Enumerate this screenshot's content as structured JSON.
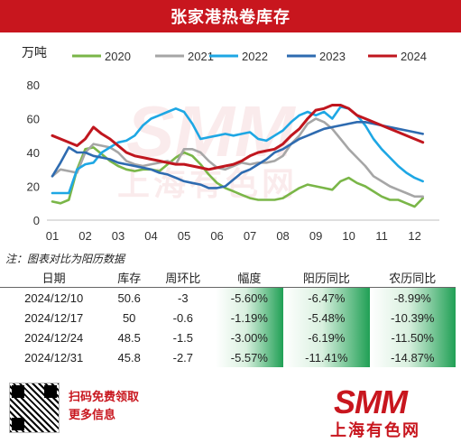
{
  "title": "张家港热卷库存",
  "unit": "万吨",
  "note": "注：图表对比为阳历数据",
  "colors": {
    "brand": "#c8161e",
    "s2020": "#7ab648",
    "s2021": "#a6a6a6",
    "s2022": "#1ea7e4",
    "s2023": "#2e6bb0",
    "s2024": "#c0161e",
    "green": "#20a055"
  },
  "chart_data": {
    "type": "line",
    "title": "张家港热卷库存",
    "ylabel": "万吨",
    "xlabel": "",
    "ylim": [
      0,
      80
    ],
    "yticks": [
      0,
      20,
      40,
      60,
      80
    ],
    "xlim": [
      1,
      12.75
    ],
    "xticks": [
      "01",
      "02",
      "03",
      "04",
      "05",
      "06",
      "07",
      "08",
      "09",
      "10",
      "11",
      "12"
    ],
    "legend_position": "top",
    "grid": false,
    "series": [
      {
        "name": "2020",
        "color": "#7ab648",
        "x": [
          1,
          1.25,
          1.5,
          1.75,
          2,
          2.25,
          2.5,
          2.75,
          3,
          3.25,
          3.5,
          3.75,
          4,
          4.25,
          4.5,
          4.75,
          5,
          5.25,
          5.5,
          5.75,
          6,
          6.25,
          6.5,
          6.75,
          7,
          7.25,
          7.5,
          7.75,
          8,
          8.25,
          8.5,
          8.75,
          9,
          9.25,
          9.5,
          9.75,
          10,
          10.25,
          10.5,
          10.75,
          11,
          11.25,
          11.5,
          11.75,
          12,
          12.25
        ],
        "values": [
          11,
          10,
          12,
          30,
          42,
          43,
          39,
          35,
          32,
          30,
          29,
          30,
          30,
          29,
          33,
          37,
          40,
          38,
          33,
          27,
          22,
          19,
          17,
          15,
          13,
          12,
          12,
          12,
          13,
          16,
          19,
          21,
          20,
          19,
          18,
          23,
          25,
          22,
          20,
          17,
          14,
          12,
          12,
          10,
          8,
          13
        ]
      },
      {
        "name": "2021",
        "color": "#a6a6a6",
        "x": [
          1,
          1.25,
          1.5,
          1.75,
          2,
          2.25,
          2.5,
          2.75,
          3,
          3.25,
          3.5,
          3.75,
          4,
          4.25,
          4.5,
          4.75,
          5,
          5.25,
          5.5,
          5.75,
          6,
          6.25,
          6.5,
          6.75,
          7,
          7.25,
          7.5,
          7.75,
          8,
          8.25,
          8.5,
          8.75,
          9,
          9.25,
          9.5,
          9.75,
          10,
          10.25,
          10.5,
          10.75,
          11,
          11.25,
          11.5,
          11.75,
          12,
          12.25
        ],
        "values": [
          26,
          30,
          29,
          28,
          40,
          45,
          44,
          43,
          40,
          35,
          33,
          32,
          33,
          34,
          35,
          33,
          42,
          42,
          40,
          35,
          31,
          30,
          32,
          34,
          33,
          34,
          34,
          35,
          38,
          45,
          50,
          57,
          60,
          58,
          54,
          48,
          42,
          37,
          32,
          26,
          23,
          20,
          18,
          16,
          14,
          14
        ]
      },
      {
        "name": "2022",
        "color": "#1ea7e4",
        "x": [
          1,
          1.25,
          1.5,
          1.75,
          2,
          2.25,
          2.5,
          2.75,
          3,
          3.25,
          3.5,
          3.75,
          4,
          4.25,
          4.5,
          4.75,
          5,
          5.25,
          5.5,
          5.75,
          6,
          6.25,
          6.5,
          6.75,
          7,
          7.25,
          7.5,
          7.75,
          8,
          8.25,
          8.5,
          8.75,
          9,
          9.25,
          9.5,
          9.75,
          10,
          10.25,
          10.5,
          10.75,
          11,
          11.25,
          11.5,
          11.75,
          12,
          12.25
        ],
        "values": [
          16,
          16,
          16,
          30,
          33,
          34,
          40,
          43,
          46,
          47,
          50,
          56,
          60,
          62,
          64,
          66,
          64,
          57,
          48,
          49,
          50,
          51,
          50,
          51,
          52,
          48,
          47,
          50,
          53,
          58,
          62,
          64,
          62,
          64,
          60,
          67,
          66,
          62,
          56,
          48,
          42,
          37,
          32,
          28,
          25,
          23
        ]
      },
      {
        "name": "2023",
        "color": "#2e6bb0",
        "x": [
          1,
          1.25,
          1.5,
          1.75,
          2,
          2.25,
          2.5,
          2.75,
          3,
          3.25,
          3.5,
          3.75,
          4,
          4.25,
          4.5,
          4.75,
          5,
          5.25,
          5.5,
          5.75,
          6,
          6.25,
          6.5,
          6.75,
          7,
          7.25,
          7.5,
          7.75,
          8,
          8.25,
          8.5,
          8.75,
          9,
          9.25,
          9.5,
          9.75,
          10,
          10.25,
          10.5,
          10.75,
          11,
          11.25,
          11.5,
          11.75,
          12,
          12.25
        ],
        "values": [
          26,
          34,
          43,
          40,
          40,
          38,
          37,
          36,
          34,
          33,
          32,
          31,
          30,
          28,
          27,
          25,
          23,
          22,
          21,
          19,
          19,
          20,
          24,
          28,
          30,
          33,
          36,
          40,
          42,
          45,
          48,
          50,
          52,
          54,
          55,
          56,
          57,
          58,
          58,
          57,
          56,
          55,
          54,
          53,
          52,
          51
        ]
      },
      {
        "name": "2024",
        "color": "#c0161e",
        "x": [
          1,
          1.25,
          1.5,
          1.75,
          2,
          2.25,
          2.5,
          2.75,
          3,
          3.25,
          3.5,
          3.75,
          4,
          4.25,
          4.5,
          4.75,
          5,
          5.25,
          5.5,
          5.75,
          6,
          6.25,
          6.5,
          6.75,
          7,
          7.25,
          7.5,
          7.75,
          8,
          8.25,
          8.5,
          8.75,
          9,
          9.25,
          9.5,
          9.75,
          10,
          10.25,
          10.5,
          10.75,
          11,
          11.25,
          11.5,
          11.75,
          12,
          12.25
        ],
        "values": [
          50,
          48,
          46,
          44,
          48,
          55,
          51,
          48,
          44,
          40,
          38,
          37,
          36,
          35,
          34,
          33,
          33,
          32,
          31,
          30,
          31,
          32,
          33,
          35,
          38,
          40,
          41,
          42,
          45,
          50,
          54,
          60,
          65,
          66,
          68,
          68,
          66,
          62,
          60,
          58,
          56,
          54,
          52,
          50,
          48,
          46
        ]
      }
    ]
  },
  "table": {
    "headers": [
      "日期",
      "库存",
      "周环比",
      "幅度",
      "阳历同比",
      "农历同比"
    ],
    "rows": [
      [
        "2024/12/10",
        "50.6",
        "-3",
        "-5.60%",
        "-6.47%",
        "-8.99%"
      ],
      [
        "2024/12/17",
        "50",
        "-0.6",
        "-1.19%",
        "-5.48%",
        "-10.39%"
      ],
      [
        "2024/12/24",
        "48.5",
        "-1.5",
        "-3.00%",
        "-6.19%",
        "-11.50%"
      ],
      [
        "2024/12/31",
        "45.8",
        "-2.7",
        "-5.57%",
        "-11.41%",
        "-14.87%"
      ]
    ]
  },
  "footer": {
    "scan_line1": "扫码免费领取",
    "scan_line2": "更多信息",
    "logo_text": "SMM",
    "logo_cn": "上海有色网"
  }
}
